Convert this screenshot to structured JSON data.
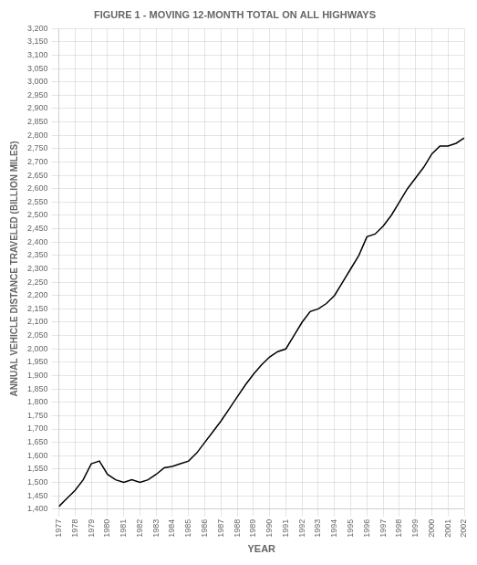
{
  "chart_data": {
    "type": "line",
    "title": "FIGURE 1 - MOVING 12-MONTH TOTAL ON ALL HIGHWAYS",
    "xlabel": "YEAR",
    "ylabel": "ANNUAL VEHICLE DISTANCE TRAVELED (BILLION MILES)",
    "x": [
      1977,
      1977.5,
      1978,
      1978.5,
      1979,
      1979.5,
      1980,
      1980.5,
      1981,
      1981.5,
      1982,
      1982.5,
      1983,
      1983.5,
      1984,
      1984.5,
      1985,
      1985.5,
      1986,
      1986.5,
      1987,
      1987.5,
      1988,
      1988.5,
      1989,
      1989.5,
      1990,
      1990.5,
      1991,
      1991.5,
      1992,
      1992.5,
      1993,
      1993.5,
      1994,
      1994.5,
      1995,
      1995.5,
      1996,
      1996.5,
      1997,
      1997.5,
      1998,
      1998.5,
      1999,
      1999.5,
      2000,
      2000.5,
      2001,
      2001.5,
      2002
    ],
    "values": [
      1410,
      1440,
      1470,
      1510,
      1570,
      1580,
      1530,
      1510,
      1500,
      1510,
      1500,
      1510,
      1530,
      1555,
      1560,
      1570,
      1580,
      1610,
      1650,
      1690,
      1730,
      1775,
      1820,
      1865,
      1905,
      1940,
      1970,
      1990,
      2000,
      2050,
      2100,
      2140,
      2150,
      2170,
      2200,
      2250,
      2300,
      2350,
      2420,
      2430,
      2460,
      2500,
      2550,
      2600,
      2640,
      2680,
      2730,
      2760,
      2760,
      2770,
      2790
    ],
    "color": "#000000",
    "xlim": [
      1977,
      2002
    ],
    "ylim": [
      1400,
      3200
    ],
    "xticks": [
      1977,
      1978,
      1979,
      1980,
      1981,
      1982,
      1983,
      1984,
      1985,
      1986,
      1987,
      1988,
      1989,
      1990,
      1991,
      1992,
      1993,
      1994,
      1995,
      1996,
      1997,
      1998,
      1999,
      2000,
      2001,
      2002
    ],
    "yticks": [
      {
        "value": 1400,
        "label": "1,400"
      },
      {
        "value": 1450,
        "label": "1,450"
      },
      {
        "value": 1500,
        "label": "1,500"
      },
      {
        "value": 1550,
        "label": "1,550"
      },
      {
        "value": 1600,
        "label": "1,600"
      },
      {
        "value": 1650,
        "label": "1,650"
      },
      {
        "value": 1700,
        "label": "1,700"
      },
      {
        "value": 1750,
        "label": "1,750"
      },
      {
        "value": 1800,
        "label": "1,800"
      },
      {
        "value": 1850,
        "label": "1,850"
      },
      {
        "value": 1900,
        "label": "1,900"
      },
      {
        "value": 1950,
        "label": "1,950"
      },
      {
        "value": 2000,
        "label": "2,000"
      },
      {
        "value": 2050,
        "label": "2,050"
      },
      {
        "value": 2100,
        "label": "2,100"
      },
      {
        "value": 2150,
        "label": "2,150"
      },
      {
        "value": 2200,
        "label": "2,200"
      },
      {
        "value": 2250,
        "label": "2,250"
      },
      {
        "value": 2300,
        "label": "2,300"
      },
      {
        "value": 2350,
        "label": "2,350"
      },
      {
        "value": 2400,
        "label": "2,400"
      },
      {
        "value": 2450,
        "label": "2,450"
      },
      {
        "value": 2500,
        "label": "2,500"
      },
      {
        "value": 2550,
        "label": "2,550"
      },
      {
        "value": 2600,
        "label": "2,600"
      },
      {
        "value": 2650,
        "label": "2,650"
      },
      {
        "value": 2700,
        "label": "2,700"
      },
      {
        "value": 2750,
        "label": "2,750"
      },
      {
        "value": 2800,
        "label": "2,800"
      },
      {
        "value": 2850,
        "label": "2,850"
      },
      {
        "value": 2900,
        "label": "2,900"
      },
      {
        "value": 2950,
        "label": "2,950"
      },
      {
        "value": 3000,
        "label": "3,000"
      },
      {
        "value": 3050,
        "label": "3,050"
      },
      {
        "value": 3100,
        "label": "3,100"
      },
      {
        "value": 3150,
        "label": "3,150"
      },
      {
        "value": 3200,
        "label": "3,200"
      }
    ],
    "grid": true
  }
}
